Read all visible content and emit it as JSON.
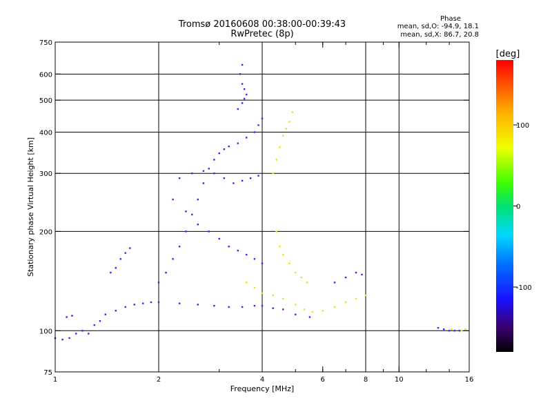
{
  "chart_data": {
    "type": "scatter",
    "title_line1": "Tromsø 20160608 00:38:00-00:39:43",
    "title_line2": "RwPretec (8p)",
    "phase_box": {
      "title": "Phase",
      "line_o": "mean, sd,O: -94.9, 18.1",
      "line_x": "mean, sd,X: 86.7, 20.8"
    },
    "xlabel": "Frequency [MHz]",
    "ylabel": "Stationary phase Virtual Height [km]",
    "x_scale": "log",
    "y_scale": "log",
    "xlim": [
      1,
      16
    ],
    "ylim": [
      75,
      750
    ],
    "x_ticks": [
      {
        "value": 1,
        "label": "1"
      },
      {
        "value": 2,
        "label": "2"
      },
      {
        "value": 4,
        "label": "4"
      },
      {
        "value": 6,
        "label": "6"
      },
      {
        "value": 8,
        "label": "8"
      },
      {
        "value": 10,
        "label": "10"
      },
      {
        "value": 16,
        "label": "16"
      }
    ],
    "x_major_grid": [
      2,
      4,
      8,
      10
    ],
    "x_minor_ticks": [
      3,
      5,
      6,
      7,
      9,
      12,
      14
    ],
    "y_ticks": [
      {
        "value": 75,
        "label": "75"
      },
      {
        "value": 100,
        "label": "100"
      },
      {
        "value": 200,
        "label": "200"
      },
      {
        "value": 300,
        "label": "300"
      },
      {
        "value": 400,
        "label": "400"
      },
      {
        "value": 500,
        "label": "500"
      },
      {
        "value": 600,
        "label": "600"
      },
      {
        "value": 750,
        "label": "750"
      }
    ],
    "y_major_grid": [
      100,
      200,
      300,
      400,
      500,
      600
    ],
    "grid": true,
    "colorbar": {
      "label": "[deg]",
      "range": [
        -180,
        180
      ],
      "ticks": [
        {
          "value": 100,
          "label": "100"
        },
        {
          "value": 0,
          "label": "0"
        },
        {
          "value": -100,
          "label": "-100"
        }
      ]
    },
    "color_groups": {
      "O_mode": "#2a2af0",
      "X_mode": "#e8e800"
    },
    "traces": [
      {
        "name": "o_low_trace",
        "group": "O_mode",
        "points": [
          [
            1.0,
            95
          ],
          [
            1.05,
            94
          ],
          [
            1.1,
            95
          ],
          [
            1.15,
            98
          ],
          [
            1.2,
            100
          ],
          [
            1.25,
            98
          ],
          [
            1.3,
            104
          ],
          [
            1.35,
            107
          ],
          [
            1.4,
            112
          ],
          [
            1.5,
            115
          ],
          [
            1.6,
            118
          ],
          [
            1.7,
            120
          ],
          [
            1.8,
            121
          ],
          [
            1.9,
            122
          ],
          [
            2.0,
            122
          ],
          [
            2.3,
            121
          ],
          [
            2.6,
            120
          ],
          [
            2.9,
            119
          ],
          [
            3.2,
            118
          ],
          [
            3.5,
            118
          ],
          [
            3.8,
            119
          ],
          [
            4.0,
            119
          ],
          [
            4.3,
            117
          ],
          [
            4.6,
            116
          ],
          [
            5.0,
            112
          ],
          [
            5.5,
            110
          ]
        ]
      },
      {
        "name": "o_early_rise",
        "group": "O_mode",
        "points": [
          [
            1.08,
            110
          ],
          [
            1.12,
            111
          ],
          [
            1.45,
            150
          ],
          [
            1.5,
            155
          ],
          [
            1.55,
            165
          ],
          [
            1.6,
            172
          ],
          [
            1.65,
            178
          ]
        ]
      },
      {
        "name": "o_f_cusp_2_4",
        "group": "O_mode",
        "points": [
          [
            2.0,
            140
          ],
          [
            2.1,
            150
          ],
          [
            2.2,
            165
          ],
          [
            2.3,
            180
          ],
          [
            2.4,
            200
          ],
          [
            2.5,
            225
          ],
          [
            2.6,
            250
          ],
          [
            2.7,
            280
          ],
          [
            2.8,
            310
          ],
          [
            2.9,
            330
          ],
          [
            3.0,
            345
          ],
          [
            3.1,
            355
          ],
          [
            3.2,
            362
          ],
          [
            3.4,
            370
          ],
          [
            3.6,
            385
          ],
          [
            3.8,
            400
          ],
          [
            3.9,
            420
          ],
          [
            4.0,
            440
          ]
        ]
      },
      {
        "name": "o_upper_cusp",
        "group": "O_mode",
        "points": [
          [
            3.4,
            470
          ],
          [
            3.5,
            490
          ],
          [
            3.55,
            505
          ],
          [
            3.6,
            520
          ],
          [
            3.55,
            540
          ],
          [
            3.5,
            560
          ],
          [
            3.45,
            600
          ],
          [
            3.5,
            640
          ]
        ]
      },
      {
        "name": "o_spread_mid",
        "group": "O_mode",
        "points": [
          [
            2.2,
            250
          ],
          [
            2.4,
            230
          ],
          [
            2.6,
            210
          ],
          [
            2.8,
            200
          ],
          [
            3.0,
            190
          ],
          [
            3.2,
            180
          ],
          [
            3.4,
            175
          ],
          [
            3.6,
            170
          ],
          [
            3.8,
            165
          ],
          [
            4.0,
            160
          ],
          [
            2.3,
            290
          ],
          [
            2.5,
            300
          ],
          [
            2.7,
            305
          ],
          [
            2.9,
            300
          ],
          [
            3.1,
            290
          ],
          [
            3.3,
            280
          ],
          [
            3.5,
            285
          ],
          [
            3.7,
            290
          ],
          [
            3.9,
            295
          ]
        ]
      },
      {
        "name": "x_trace_upper",
        "group": "X_mode",
        "points": [
          [
            4.3,
            300
          ],
          [
            4.4,
            330
          ],
          [
            4.5,
            360
          ],
          [
            4.6,
            390
          ],
          [
            4.7,
            410
          ],
          [
            4.8,
            430
          ],
          [
            4.9,
            460
          ]
        ]
      },
      {
        "name": "x_trace_lower",
        "group": "X_mode",
        "points": [
          [
            3.6,
            140
          ],
          [
            3.8,
            135
          ],
          [
            4.0,
            130
          ],
          [
            4.3,
            128
          ],
          [
            4.6,
            125
          ],
          [
            5.0,
            120
          ],
          [
            5.3,
            116
          ],
          [
            5.6,
            114
          ],
          [
            6.0,
            115
          ],
          [
            6.5,
            118
          ],
          [
            7.0,
            122
          ],
          [
            7.5,
            125
          ],
          [
            8.0,
            128
          ]
        ]
      },
      {
        "name": "x_mid_band",
        "group": "X_mode",
        "points": [
          [
            4.4,
            200
          ],
          [
            4.5,
            180
          ],
          [
            4.6,
            170
          ],
          [
            4.8,
            160
          ],
          [
            5.0,
            150
          ],
          [
            5.2,
            145
          ],
          [
            5.4,
            140
          ]
        ]
      },
      {
        "name": "o_high_freq",
        "group": "O_mode",
        "points": [
          [
            6.5,
            140
          ],
          [
            7.0,
            145
          ],
          [
            7.5,
            150
          ],
          [
            7.8,
            148
          ],
          [
            13.0,
            102
          ],
          [
            13.5,
            101
          ],
          [
            14.0,
            100
          ],
          [
            14.5,
            100
          ],
          [
            15.0,
            100
          ]
        ]
      },
      {
        "name": "x_high_freq",
        "group": "X_mode",
        "points": [
          [
            14.2,
            101
          ],
          [
            15.2,
            100
          ],
          [
            15.6,
            101
          ]
        ]
      }
    ]
  }
}
